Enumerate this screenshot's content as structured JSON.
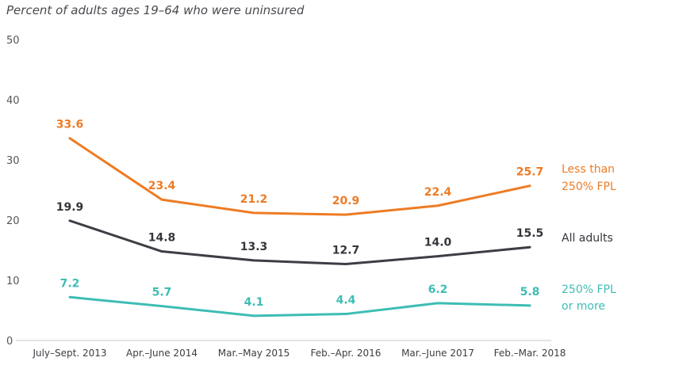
{
  "chart_data": {
    "type": "line",
    "title": "Percent of adults ages 19–64 who were uninsured",
    "xlabel": "",
    "ylabel": "",
    "ylim": [
      0,
      50
    ],
    "yticks": [
      "0",
      "10",
      "20",
      "30",
      "40",
      "50"
    ],
    "grid": false,
    "legend_placement": "right, inline at line ends",
    "categories": [
      "July–Sept. 2013",
      "Apr.–June 2014",
      "Mar.–May 2015",
      "Feb.–Apr. 2016",
      "Mar.–June 2017",
      "Feb.–Mar. 2018"
    ],
    "series": [
      {
        "name": "Less than 250% FPL",
        "legend_lines": [
          "Less than",
          "250% FPL"
        ],
        "color": "#ee7b24",
        "label_color": "#ee7b24",
        "values": [
          33.6,
          23.4,
          21.2,
          20.9,
          22.4,
          25.7
        ],
        "labels": [
          "33.6",
          "23.4",
          "21.2",
          "20.9",
          "22.4",
          "25.7"
        ]
      },
      {
        "name": "All adults",
        "legend_lines": [
          "All adults"
        ],
        "color": "#3d3e45",
        "label_color": "#35363c",
        "values": [
          19.9,
          14.8,
          13.3,
          12.7,
          14.0,
          15.5
        ],
        "labels": [
          "19.9",
          "14.8",
          "13.3",
          "12.7",
          "14.0",
          "15.5"
        ]
      },
      {
        "name": "250% FPL or more",
        "legend_lines": [
          "250% FPL",
          "or more"
        ],
        "color": "#3dbdb4",
        "label_color": "#3dbdb4",
        "values": [
          7.2,
          5.7,
          4.1,
          4.4,
          6.2,
          5.8
        ],
        "labels": [
          "7.2",
          "5.7",
          "4.1",
          "4.4",
          "6.2",
          "5.8"
        ]
      }
    ]
  }
}
